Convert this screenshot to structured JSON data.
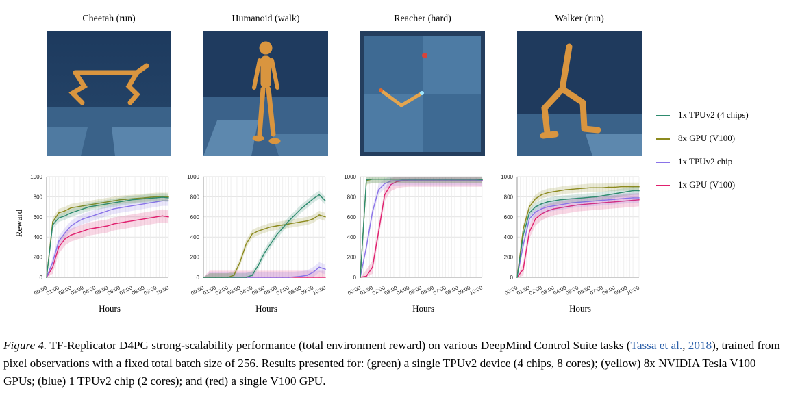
{
  "panels": [
    {
      "title": "Cheetah (run)"
    },
    {
      "title": "Humanoid (walk)"
    },
    {
      "title": "Reacher (hard)"
    },
    {
      "title": "Walker (run)"
    }
  ],
  "axes": {
    "ylabel": "Reward",
    "xlabel": "Hours",
    "yticks": [
      "0",
      "200",
      "400",
      "600",
      "800",
      "1000"
    ],
    "xticks": [
      "00:00",
      "01:00",
      "02:00",
      "03:00",
      "04:00",
      "05:00",
      "06:00",
      "07:00",
      "08:00",
      "09:00",
      "10:00"
    ]
  },
  "legend": [
    {
      "label": "1x TPUv2 (4 chips)",
      "color": "#2e8b6e"
    },
    {
      "label": "8x GPU (V100)",
      "color": "#8c8a1e"
    },
    {
      "label": "1x TPUv2 chip",
      "color": "#8a73e8"
    },
    {
      "label": "1x GPU (V100)",
      "color": "#e0206e"
    }
  ],
  "caption": {
    "label": "Figure 4.",
    "text1": " TF-Replicator D4PG strong-scalability performance (total environment reward) on various DeepMind Control Suite tasks (",
    "cite_a": "Tassa et al.",
    "text2": ", ",
    "cite_b": "2018",
    "text3": "), trained from pixel observations with a fixed total batch size of 256. Results presented for: (green) a single TPUv2 device (4 chips, 8 cores); (yellow) 8x NVIDIA Tesla V100 GPUs; (blue) 1 TPUv2 chip (2 cores); and (red) a single V100 GPU."
  },
  "chart_data": [
    {
      "type": "line",
      "title": "Cheetah (run)",
      "xlabel": "Hours",
      "ylabel": "Reward",
      "ylim": [
        0,
        1000
      ],
      "x": [
        0,
        0.5,
        1,
        1.5,
        2,
        2.5,
        3,
        3.5,
        4,
        4.5,
        5,
        5.5,
        6,
        6.5,
        7,
        7.5,
        8,
        8.5,
        9,
        9.5,
        10
      ],
      "series": [
        {
          "name": "1x TPUv2 (4 chips)",
          "values": [
            0,
            520,
            590,
            610,
            640,
            660,
            680,
            700,
            710,
            720,
            730,
            740,
            750,
            760,
            770,
            775,
            780,
            785,
            790,
            795,
            790
          ]
        },
        {
          "name": "8x GPU (V100)",
          "values": [
            0,
            550,
            640,
            660,
            690,
            700,
            710,
            720,
            730,
            740,
            750,
            760,
            770,
            775,
            780,
            785,
            790,
            795,
            800,
            800,
            800
          ]
        },
        {
          "name": "1x TPUv2 chip",
          "values": [
            0,
            150,
            360,
            440,
            510,
            550,
            580,
            600,
            620,
            640,
            660,
            680,
            690,
            700,
            710,
            720,
            730,
            740,
            750,
            760,
            760
          ]
        },
        {
          "name": "1x GPU (V100)",
          "values": [
            0,
            100,
            300,
            380,
            420,
            440,
            460,
            480,
            490,
            500,
            510,
            530,
            540,
            550,
            560,
            570,
            580,
            590,
            600,
            610,
            600
          ]
        }
      ]
    },
    {
      "type": "line",
      "title": "Humanoid (walk)",
      "xlabel": "Hours",
      "ylabel": "Reward",
      "ylim": [
        0,
        1000
      ],
      "x": [
        0,
        0.5,
        1,
        1.5,
        2,
        2.5,
        3,
        3.5,
        4,
        4.5,
        5,
        5.5,
        6,
        6.5,
        7,
        7.5,
        8,
        8.5,
        9,
        9.5,
        10
      ],
      "series": [
        {
          "name": "1x TPUv2 (4 chips)",
          "values": [
            0,
            0,
            0,
            0,
            0,
            0,
            0,
            0,
            20,
            120,
            240,
            330,
            420,
            490,
            560,
            620,
            680,
            730,
            780,
            820,
            760
          ]
        },
        {
          "name": "8x GPU (V100)",
          "values": [
            0,
            0,
            0,
            0,
            0,
            20,
            150,
            330,
            430,
            460,
            480,
            500,
            510,
            520,
            530,
            540,
            550,
            560,
            580,
            620,
            600
          ]
        },
        {
          "name": "1x TPUv2 chip",
          "values": [
            0,
            0,
            0,
            0,
            0,
            0,
            0,
            0,
            0,
            0,
            0,
            0,
            0,
            0,
            0,
            5,
            10,
            20,
            50,
            100,
            80
          ]
        },
        {
          "name": "1x GPU (V100)",
          "values": [
            0,
            0,
            0,
            0,
            0,
            0,
            0,
            0,
            0,
            0,
            0,
            0,
            0,
            0,
            0,
            0,
            0,
            0,
            0,
            0,
            0
          ]
        }
      ]
    },
    {
      "type": "line",
      "title": "Reacher (hard)",
      "xlabel": "Hours",
      "ylabel": "Reward",
      "ylim": [
        0,
        1000
      ],
      "x": [
        0,
        0.5,
        1,
        1.5,
        2,
        2.5,
        3,
        3.5,
        4,
        4.5,
        5,
        5.5,
        6,
        6.5,
        7,
        7.5,
        8,
        8.5,
        9,
        9.5,
        10
      ],
      "series": [
        {
          "name": "1x TPUv2 (4 chips)",
          "values": [
            0,
            970,
            975,
            975,
            975,
            975,
            975,
            975,
            975,
            975,
            975,
            975,
            975,
            975,
            975,
            975,
            975,
            975,
            975,
            975,
            970
          ]
        },
        {
          "name": "8x GPU (V100)",
          "values": [
            0,
            960,
            975,
            975,
            975,
            975,
            975,
            975,
            975,
            975,
            975,
            975,
            975,
            975,
            975,
            975,
            975,
            975,
            975,
            975,
            975
          ]
        },
        {
          "name": "1x TPUv2 chip",
          "values": [
            0,
            300,
            650,
            870,
            930,
            955,
            960,
            965,
            965,
            965,
            965,
            965,
            965,
            965,
            965,
            965,
            965,
            965,
            965,
            965,
            960
          ]
        },
        {
          "name": "1x GPU (V100)",
          "values": [
            0,
            10,
            100,
            450,
            820,
            920,
            950,
            960,
            965,
            965,
            965,
            965,
            965,
            965,
            965,
            965,
            965,
            965,
            965,
            965,
            965
          ]
        }
      ]
    },
    {
      "type": "line",
      "title": "Walker (run)",
      "xlabel": "Hours",
      "ylabel": "Reward",
      "ylim": [
        0,
        1000
      ],
      "x": [
        0,
        0.5,
        1,
        1.5,
        2,
        2.5,
        3,
        3.5,
        4,
        4.5,
        5,
        5.5,
        6,
        6.5,
        7,
        7.5,
        8,
        8.5,
        9,
        9.5,
        10
      ],
      "series": [
        {
          "name": "1x TPUv2 (4 chips)",
          "values": [
            0,
            420,
            640,
            700,
            730,
            750,
            760,
            770,
            775,
            780,
            785,
            790,
            795,
            800,
            810,
            820,
            830,
            840,
            850,
            860,
            860
          ]
        },
        {
          "name": "8x GPU (V100)",
          "values": [
            0,
            480,
            700,
            780,
            820,
            840,
            850,
            860,
            870,
            875,
            880,
            885,
            890,
            890,
            890,
            895,
            895,
            900,
            900,
            900,
            900
          ]
        },
        {
          "name": "1x TPUv2 chip",
          "values": [
            0,
            320,
            580,
            650,
            680,
            700,
            710,
            720,
            730,
            740,
            745,
            750,
            755,
            760,
            765,
            770,
            775,
            780,
            785,
            790,
            790
          ]
        },
        {
          "name": "1x GPU (V100)",
          "values": [
            0,
            80,
            450,
            580,
            630,
            660,
            680,
            690,
            700,
            710,
            720,
            725,
            730,
            735,
            740,
            745,
            750,
            755,
            760,
            765,
            770
          ]
        }
      ]
    }
  ]
}
